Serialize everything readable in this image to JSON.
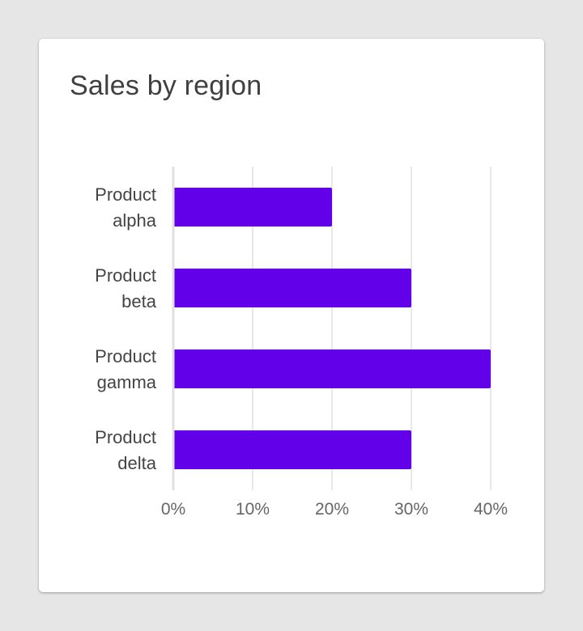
{
  "card": {
    "title": "Sales by region"
  },
  "colors": {
    "background": "#e6e6e6",
    "card": "#ffffff",
    "bar": "#6200ea",
    "grid": "#e8e8e8",
    "axis": "#e0e0e0",
    "label_text": "#444444",
    "tick_text": "#666666"
  },
  "chart_data": {
    "type": "bar",
    "orientation": "horizontal",
    "title": "Sales by region",
    "categories": [
      [
        "Product",
        "alpha"
      ],
      [
        "Product",
        "beta"
      ],
      [
        "Product",
        "gamma"
      ],
      [
        "Product",
        "delta"
      ]
    ],
    "values": [
      20,
      30,
      40,
      30
    ],
    "value_unit": "%",
    "xlim": [
      0,
      40
    ],
    "x_ticks": [
      0,
      10,
      20,
      30,
      40
    ],
    "x_tick_labels": [
      "0%",
      "10%",
      "20%",
      "30%",
      "40%"
    ],
    "xlabel": "",
    "ylabel": "",
    "grid": true,
    "legend": "none"
  }
}
